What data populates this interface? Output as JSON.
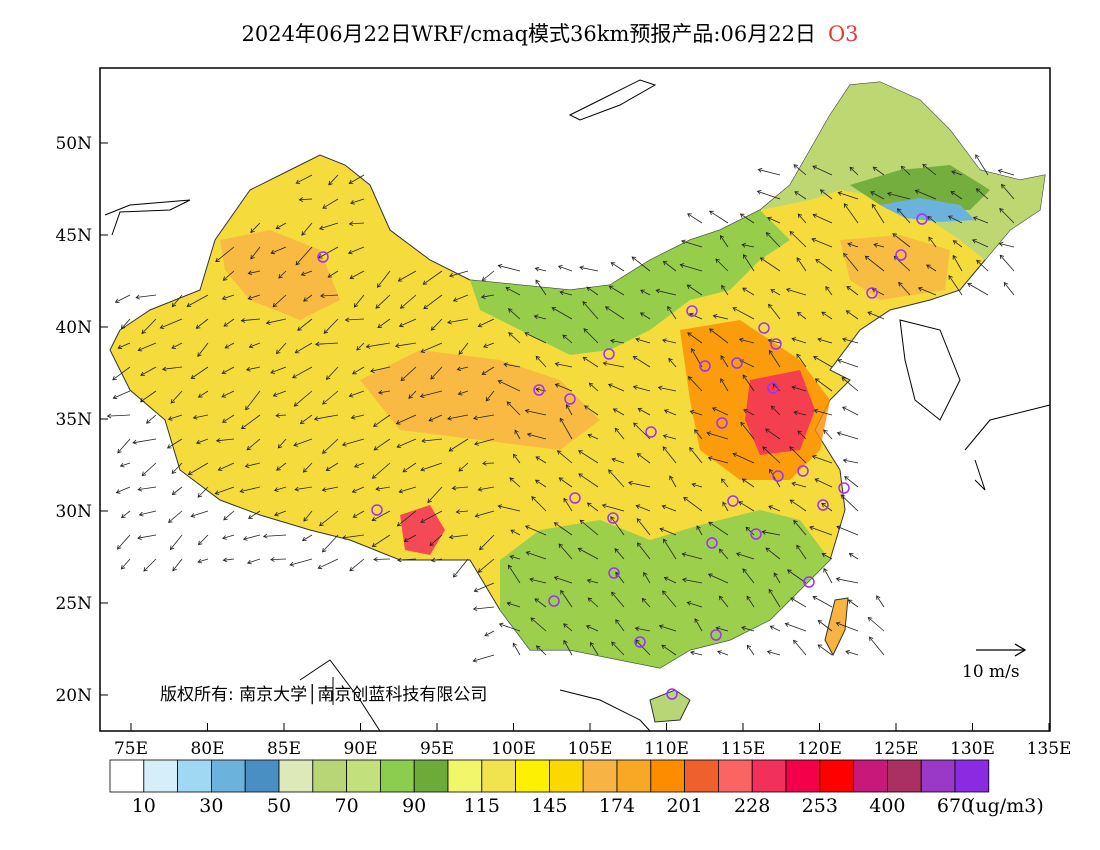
{
  "title": {
    "text": "2024年06月22日WRF/cmaq模式36km预报产品:06月22日",
    "pollutant": "O3"
  },
  "axes": {
    "lat_labels": [
      "50N",
      "45N",
      "40N",
      "35N",
      "30N",
      "25N",
      "20N"
    ],
    "lon_labels": [
      "75E",
      "80E",
      "85E",
      "90E",
      "95E",
      "100E",
      "105E",
      "110E",
      "115E",
      "120E",
      "125E",
      "130E",
      "135E"
    ]
  },
  "copyright": "版权所有: 南京大学│南京创蓝科技有限公司",
  "wind_reference": "10 m/s",
  "colorbar": {
    "colors": [
      "#ffffff",
      "#d6eef9",
      "#9fd8f2",
      "#6bb3dd",
      "#4a8fc4",
      "#dde9b8",
      "#b9d676",
      "#c2e07c",
      "#8ccc4e",
      "#6caa3a",
      "#f2f66a",
      "#f1e34e",
      "#fdf000",
      "#fbd800",
      "#f8b443",
      "#f8a825",
      "#fc8c00",
      "#f0602c",
      "#fc6464",
      "#f2305a",
      "#f4004a",
      "#ff0000",
      "#c8187a",
      "#a93060",
      "#9a38c8",
      "#8a2be2"
    ],
    "labels": [
      "10",
      "30",
      "50",
      "70",
      "90",
      "115",
      "145",
      "174",
      "201",
      "228",
      "253",
      "400",
      "670"
    ],
    "units": "(ug/m3)"
  },
  "colors": {
    "frame": "#000000",
    "land_base": "#f5dc3c",
    "pollutant_title": "#e53935",
    "site_marker": "#9b30ff"
  }
}
